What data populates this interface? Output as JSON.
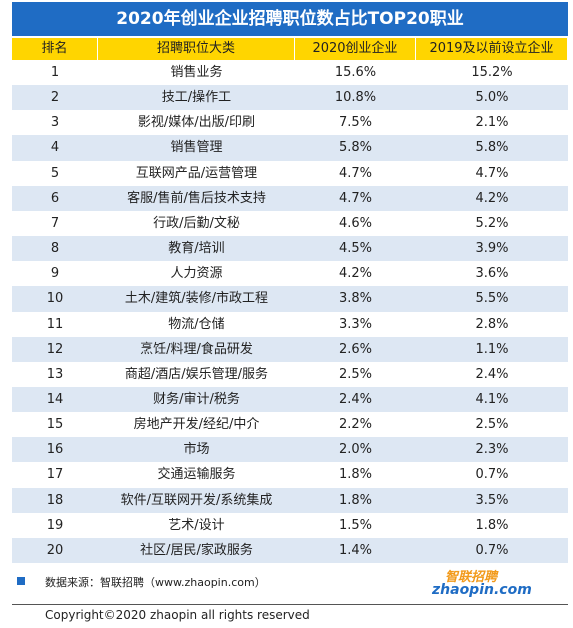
{
  "title": "2020年创业企业招聘职位数占比TOP20职业",
  "table": {
    "header": [
      "排名",
      "招聘职位大类",
      "2020创业企业",
      "2019及以前设立企业"
    ],
    "rows": [
      [
        1,
        "销售业务",
        "15.6%",
        "15.2%"
      ],
      [
        2,
        "技工/操作工",
        "10.8%",
        "5.0%"
      ],
      [
        3,
        "影视/媒体/出版/印刷",
        "7.5%",
        "2.1%"
      ],
      [
        4,
        "销售管理",
        "5.8%",
        "5.8%"
      ],
      [
        5,
        "互联网产品/运营管理",
        "4.7%",
        "4.7%"
      ],
      [
        6,
        "客服/售前/售后技术支持",
        "4.7%",
        "4.2%"
      ],
      [
        7,
        "行政/后勤/文秘",
        "4.6%",
        "5.2%"
      ],
      [
        8,
        "教育/培训",
        "4.5%",
        "3.9%"
      ],
      [
        9,
        "人力资源",
        "4.2%",
        "3.6%"
      ],
      [
        10,
        "土木/建筑/装修/市政工程",
        "3.8%",
        "5.5%"
      ],
      [
        11,
        "物流/仓储",
        "3.3%",
        "2.8%"
      ],
      [
        12,
        "烹饪/料理/食品研发",
        "2.6%",
        "1.1%"
      ],
      [
        13,
        "商超/酒店/娱乐管理/服务",
        "2.5%",
        "2.4%"
      ],
      [
        14,
        "财务/审计/税务",
        "2.4%",
        "4.1%"
      ],
      [
        15,
        "房地产开发/经纪/中介",
        "2.2%",
        "2.5%"
      ],
      [
        16,
        "市场",
        "2.0%",
        "2.3%"
      ],
      [
        17,
        "交通运输服务",
        "1.8%",
        "0.7%"
      ],
      [
        18,
        "软件/互联网开发/系统集成",
        "1.8%",
        "3.5%"
      ],
      [
        19,
        "艺术/设计",
        "1.5%",
        "1.8%"
      ],
      [
        20,
        "社区/居民/家政服务",
        "1.4%",
        "0.7%"
      ]
    ]
  },
  "source": "数据来源：智联招聘（www.zhaopin.com）",
  "logo": {
    "cn": "智联招聘",
    "en": "zhaopin.com"
  },
  "copyright": "Copyright©2020 zhaopin all rights reserved"
}
